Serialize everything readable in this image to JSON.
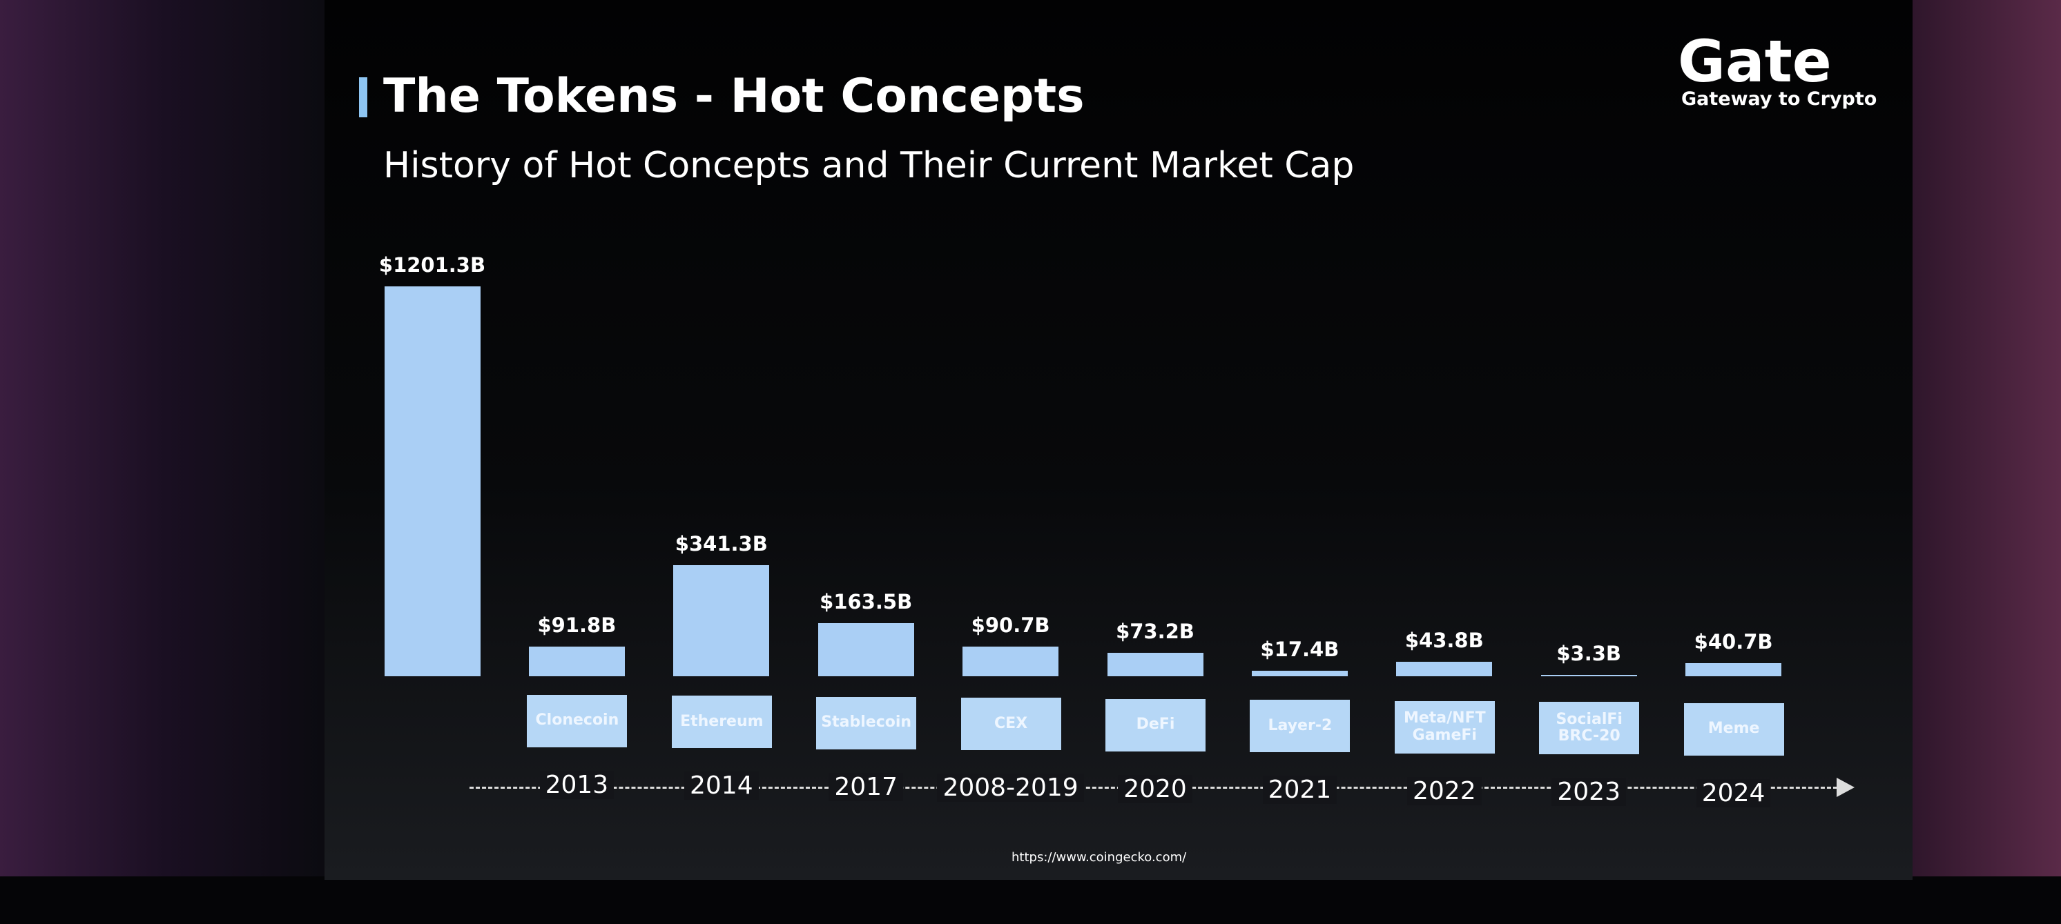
{
  "chart_data": {
    "type": "bar",
    "title": "The Tokens - Hot Concepts",
    "subtitle": "History of Hot Concepts and Their Current Market Cap",
    "categories": [
      null,
      "Clonecoin",
      "Ethereum",
      "Stablecoin",
      "CEX",
      "DeFi",
      "Layer-2",
      "Meta/NFT GameFi",
      "SocialFi BRC-20",
      "Meme"
    ],
    "years": [
      null,
      "2013",
      "2014",
      "2017",
      "2008-2019",
      "2020",
      "2021",
      "2022",
      "2023",
      "2024"
    ],
    "values": [
      1201.3,
      91.8,
      341.3,
      163.5,
      90.7,
      73.2,
      17.4,
      43.8,
      3.3,
      40.7
    ],
    "value_labels": [
      "$1201.3B",
      "$91.8B",
      "$341.3B",
      "$163.5B",
      "$90.7B",
      "$73.2B",
      "$17.4B",
      "$43.8B",
      "$3.3B",
      "$40.7B"
    ],
    "color": "#aacff5"
  },
  "logo": {
    "name": "Gate",
    "tagline": "Gateway to Crypto"
  },
  "source": "https://www.coingecko.com/"
}
